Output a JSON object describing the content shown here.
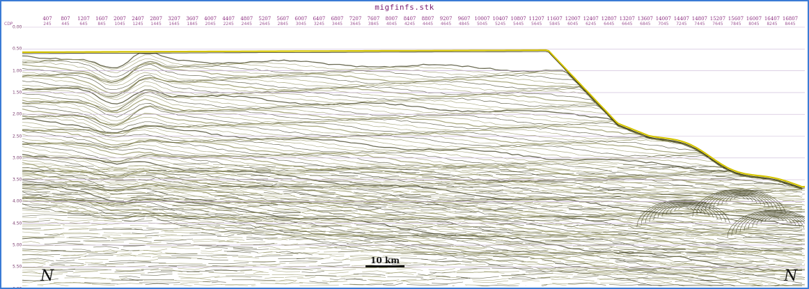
{
  "section": {
    "title": "migfinfs.stk",
    "cdp_header": "CDP",
    "shot_labels": [
      "407",
      "807",
      "1207",
      "1607",
      "2007",
      "2407",
      "2807",
      "3207",
      "3607",
      "4007",
      "4407",
      "4807",
      "5207",
      "5607",
      "6007",
      "6407",
      "6807",
      "7207",
      "7607",
      "8007",
      "8407",
      "8807",
      "9207",
      "9607",
      "10007",
      "10407",
      "10807",
      "11207",
      "11607",
      "12007",
      "12407",
      "12807",
      "13207",
      "13607",
      "14007",
      "14407",
      "14807",
      "15207",
      "15607",
      "16007",
      "16407",
      "16807"
    ],
    "cdp_labels": [
      "245",
      "445",
      "645",
      "845",
      "1045",
      "1245",
      "1445",
      "1645",
      "1845",
      "2045",
      "2245",
      "2445",
      "2645",
      "2845",
      "3045",
      "3245",
      "3445",
      "3645",
      "3845",
      "4045",
      "4245",
      "4445",
      "4645",
      "4845",
      "5045",
      "5245",
      "5445",
      "5645",
      "5845",
      "6045",
      "6245",
      "6445",
      "6645",
      "6845",
      "7045",
      "7245",
      "7445",
      "7645",
      "7845",
      "8045",
      "8245",
      "8445"
    ],
    "time_labels": [
      "0.00",
      "0.50",
      "1.00",
      "1.50",
      "2.00",
      "2.50",
      "3.00",
      "3.50",
      "4.00",
      "4.50",
      "5.00",
      "5.50",
      "6.00"
    ],
    "left_marker": "N",
    "right_marker": "N",
    "scale_bar_label": "10 km"
  },
  "colors": {
    "frame_border": "#3a7bd5",
    "seafloor": "#d4c400",
    "reflector_dark": "#3a3a1a",
    "reflector_light": "#8f8f5a",
    "grid": "#c9b6d6",
    "label_purple": "#8a2a7e"
  }
}
